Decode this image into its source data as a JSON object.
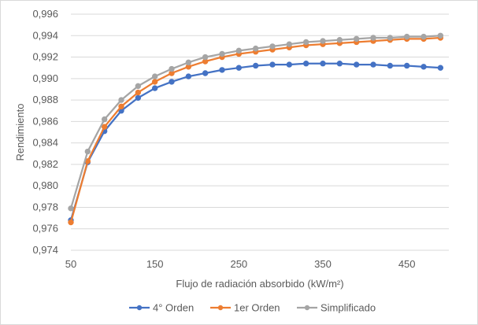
{
  "chart_data": {
    "type": "line",
    "title": "",
    "xlabel": "Flujo de radiación absorbido (kW/m²)",
    "ylabel": "Rendimiento",
    "xlim": [
      50,
      500
    ],
    "ylim": [
      0.974,
      0.996
    ],
    "x_ticks": [
      "50",
      "150",
      "250",
      "350",
      "450"
    ],
    "x_tick_values": [
      50,
      150,
      250,
      350,
      450
    ],
    "y_ticks": [
      "0,974",
      "0,976",
      "0,978",
      "0,980",
      "0,982",
      "0,984",
      "0,986",
      "0,988",
      "0,990",
      "0,992",
      "0,994",
      "0,996"
    ],
    "y_tick_values": [
      0.974,
      0.976,
      0.978,
      0.98,
      0.982,
      0.984,
      0.986,
      0.988,
      0.99,
      0.992,
      0.994,
      0.996
    ],
    "grid": "horizontal",
    "legend_position": "bottom",
    "x": [
      50,
      70,
      90,
      110,
      130,
      150,
      170,
      190,
      210,
      230,
      250,
      270,
      290,
      310,
      330,
      350,
      370,
      390,
      410,
      430,
      450,
      470,
      490
    ],
    "series": [
      {
        "name": "4° Orden",
        "color": "#4472c4",
        "values": [
          0.9768,
          0.9822,
          0.9851,
          0.987,
          0.9882,
          0.9891,
          0.9897,
          0.9902,
          0.9905,
          0.9908,
          0.991,
          0.9912,
          0.9913,
          0.9913,
          0.9914,
          0.9914,
          0.9914,
          0.9913,
          0.9913,
          0.9912,
          0.9912,
          0.9911,
          0.991
        ]
      },
      {
        "name": "1er Orden",
        "color": "#ed7d31",
        "values": [
          0.9766,
          0.9823,
          0.9855,
          0.9874,
          0.9887,
          0.9897,
          0.9905,
          0.9911,
          0.9916,
          0.992,
          0.9923,
          0.9925,
          0.9927,
          0.9929,
          0.9931,
          0.9932,
          0.9933,
          0.9934,
          0.9935,
          0.9936,
          0.9937,
          0.9937,
          0.9938
        ]
      },
      {
        "name": "Simplificado",
        "color": "#a5a5a5",
        "values": [
          0.9779,
          0.9832,
          0.9862,
          0.988,
          0.9893,
          0.9902,
          0.9909,
          0.9915,
          0.992,
          0.9923,
          0.9926,
          0.9928,
          0.993,
          0.9932,
          0.9934,
          0.9935,
          0.9936,
          0.9937,
          0.9938,
          0.9938,
          0.9939,
          0.9939,
          0.994
        ]
      }
    ],
    "gridline_color": "#d9d9d9"
  }
}
